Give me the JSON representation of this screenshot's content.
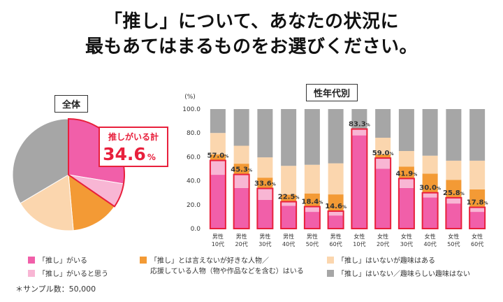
{
  "title": {
    "line1": "「推し」について、あなたの状況に",
    "line2": "最もあてはまるものをお選びください。"
  },
  "colors": {
    "oshi_iru": "#f15fa9",
    "oshi_iru_to_omou": "#f8b6d4",
    "suki_na_jinbutsu": "#f39a35",
    "shumi_aru": "#fbd6ae",
    "shumi_nai": "#a6a6a6",
    "highlight": "#e8203c"
  },
  "pie": {
    "label": "全体",
    "callout_title": "推しがいる計",
    "callout_value": "34.6",
    "callout_unit": "%"
  },
  "legend": {
    "items": [
      {
        "key": "oshi_iru",
        "label": "「推し」がいる"
      },
      {
        "key": "oshi_iru_to_omou",
        "label": "「推し」がいると思う"
      },
      {
        "key": "suki_na_jinbutsu",
        "label_line1": "「推し」とは言えないが好きな人物／",
        "label_line2": "応援している人物（物や作品などを含む）はいる"
      },
      {
        "key": "shumi_aru",
        "label": "「推し」はいないが趣味はある"
      },
      {
        "key": "shumi_nai",
        "label": "「推し」はいない／趣味らしい趣味はない"
      }
    ]
  },
  "sample_note": "＊サンプル数：50,000",
  "chart_data": [
    {
      "type": "pie",
      "title": "全体",
      "series_keys": [
        "oshi_iru",
        "oshi_iru_to_omou",
        "suki_na_jinbutsu",
        "shumi_aru",
        "shumi_nai"
      ],
      "values": [
        27.6,
        7.0,
        14.0,
        17.9,
        33.5
      ],
      "annotation": "推しがいる計 34.6%"
    },
    {
      "type": "bar",
      "title": "性年代別",
      "ylabel": "(%)",
      "ylim": [
        0,
        100
      ],
      "yticks": [
        "0.0",
        "20.0",
        "40.0",
        "60.0",
        "80.0",
        "100.0"
      ],
      "categories": [
        [
          "男性",
          "10代"
        ],
        [
          "男性",
          "20代"
        ],
        [
          "男性",
          "30代"
        ],
        [
          "男性",
          "40代"
        ],
        [
          "男性",
          "50代"
        ],
        [
          "男性",
          "60代"
        ],
        [
          "女性",
          "10代"
        ],
        [
          "女性",
          "20代"
        ],
        [
          "女性",
          "30代"
        ],
        [
          "女性",
          "40代"
        ],
        [
          "女性",
          "50代"
        ],
        [
          "女性",
          "60代"
        ]
      ],
      "series": [
        {
          "key": "oshi_iru",
          "values": [
            45,
            34,
            24,
            19,
            14,
            11,
            78,
            50,
            34,
            26,
            21,
            14
          ]
        },
        {
          "key": "oshi_iru_to_omou",
          "values": [
            12,
            11.3,
            9.6,
            3.5,
            4.4,
            3.6,
            5.3,
            9,
            7.9,
            4,
            4.8,
            3.8
          ]
        },
        {
          "key": "suki_na_jinbutsu",
          "values": [
            5,
            9,
            9,
            6,
            11,
            14,
            0,
            3,
            10,
            16,
            15,
            15
          ]
        },
        {
          "key": "shumi_aru",
          "values": [
            18,
            15,
            17,
            24,
            24,
            26,
            0,
            14,
            13,
            15,
            16,
            24
          ]
        },
        {
          "key": "shumi_nai",
          "values": [
            20,
            30.7,
            40.4,
            47.5,
            46.6,
            45.4,
            16.7,
            24,
            35.1,
            39,
            43.2,
            43.2
          ]
        }
      ],
      "totals": [
        "57.0",
        "45.3",
        "33.6",
        "22.5",
        "18.4",
        "14.6",
        "83.3",
        "59.0",
        "41.9",
        "30.0",
        "25.8",
        "17.8"
      ],
      "total_unit": "%"
    }
  ]
}
